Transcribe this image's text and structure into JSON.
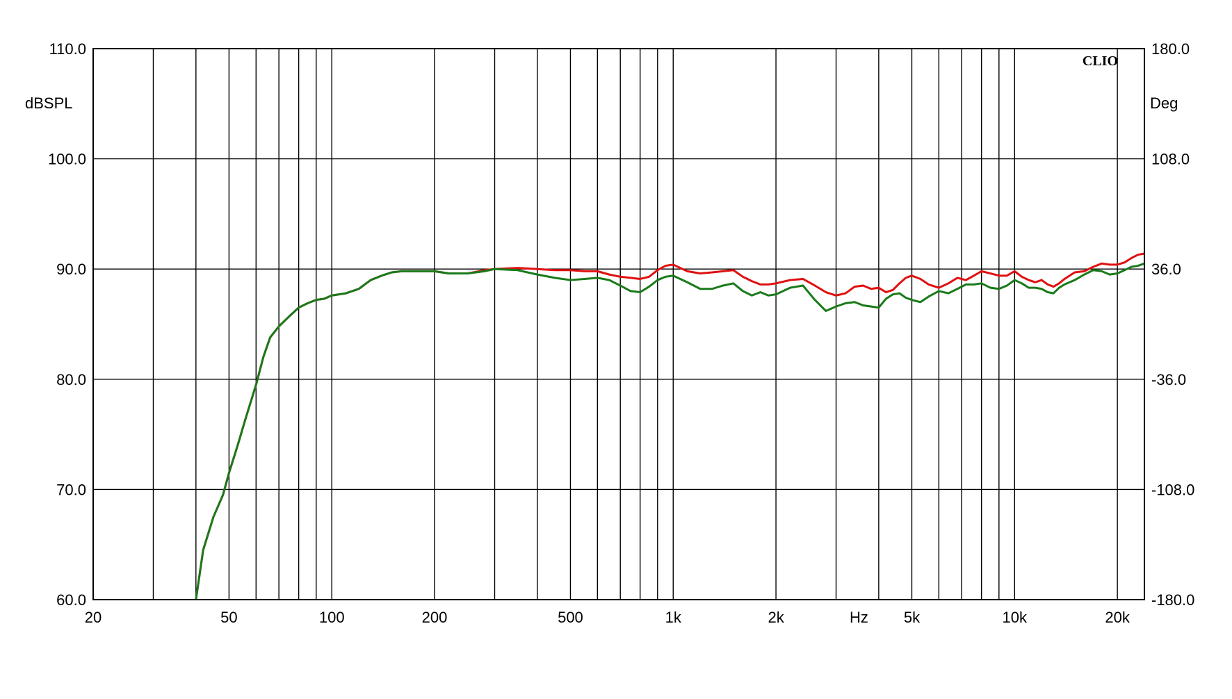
{
  "chart_data": {
    "type": "line",
    "brand": "CLIO",
    "xlabel": "Hz",
    "ylabel_left": "dBSPL",
    "ylabel_right": "Deg",
    "x_scale": "log",
    "xlim": [
      20,
      24000
    ],
    "ylim_left": [
      60,
      110
    ],
    "ylim_right": [
      -180,
      180
    ],
    "grid": true,
    "x_ticks": [
      {
        "value": 20,
        "label": "20"
      },
      {
        "value": 50,
        "label": "50"
      },
      {
        "value": 100,
        "label": "100"
      },
      {
        "value": 200,
        "label": "200"
      },
      {
        "value": 500,
        "label": "500"
      },
      {
        "value": 1000,
        "label": "1k"
      },
      {
        "value": 2000,
        "label": "2k"
      },
      {
        "value": 3500,
        "label": "Hz"
      },
      {
        "value": 5000,
        "label": "5k"
      },
      {
        "value": 10000,
        "label": "10k"
      },
      {
        "value": 20000,
        "label": "20k"
      }
    ],
    "x_gridlines": [
      20,
      30,
      40,
      50,
      60,
      70,
      80,
      90,
      100,
      200,
      300,
      400,
      500,
      600,
      700,
      800,
      900,
      1000,
      2000,
      3000,
      4000,
      5000,
      6000,
      7000,
      8000,
      9000,
      10000,
      20000
    ],
    "y_ticks_left": [
      {
        "value": 110,
        "label": "110.0"
      },
      {
        "value": 100,
        "label": "100.0"
      },
      {
        "value": 90,
        "label": "90.0"
      },
      {
        "value": 80,
        "label": "80.0"
      },
      {
        "value": 70,
        "label": "70.0"
      },
      {
        "value": 60,
        "label": "60.0"
      }
    ],
    "y_ticks_right": [
      {
        "value": 180,
        "label": "180.0"
      },
      {
        "value": 108,
        "label": "108.0"
      },
      {
        "value": 36,
        "label": "36.0"
      },
      {
        "value": -36,
        "label": "-36.0"
      },
      {
        "value": -108,
        "label": "-108.0"
      },
      {
        "value": -180,
        "label": "-180.0"
      }
    ],
    "series": [
      {
        "color": "#e01010",
        "x": [
          40,
          42,
          45,
          48,
          50,
          53,
          56,
          60,
          63,
          66,
          70,
          75,
          80,
          85,
          90,
          95,
          100,
          110,
          120,
          130,
          140,
          150,
          160,
          180,
          200,
          220,
          250,
          280,
          300,
          350,
          400,
          450,
          500,
          550,
          600,
          650,
          700,
          750,
          800,
          850,
          900,
          950,
          1000,
          1100,
          1200,
          1300,
          1400,
          1500,
          1600,
          1700,
          1800,
          1900,
          2000,
          2200,
          2400,
          2600,
          2800,
          3000,
          3200,
          3400,
          3600,
          3800,
          4000,
          4200,
          4400,
          4600,
          4800,
          5000,
          5300,
          5600,
          6000,
          6400,
          6800,
          7200,
          7600,
          8000,
          8500,
          9000,
          9500,
          10000,
          10500,
          11000,
          11500,
          12000,
          12500,
          13000,
          13500,
          14000,
          15000,
          16000,
          17000,
          18000,
          19000,
          20000,
          21000,
          22000,
          23000,
          24000
        ],
        "y": [
          60.0,
          64.5,
          67.5,
          69.5,
          71.5,
          74.0,
          76.5,
          79.5,
          82.0,
          83.8,
          84.8,
          85.7,
          86.5,
          86.9,
          87.2,
          87.3,
          87.6,
          87.8,
          88.2,
          89.0,
          89.4,
          89.7,
          89.8,
          89.8,
          89.8,
          89.6,
          89.6,
          89.9,
          90.0,
          90.1,
          90.0,
          89.9,
          89.9,
          89.8,
          89.8,
          89.5,
          89.3,
          89.2,
          89.1,
          89.3,
          89.9,
          90.3,
          90.4,
          89.8,
          89.6,
          89.7,
          89.8,
          89.9,
          89.3,
          88.9,
          88.6,
          88.6,
          88.7,
          89.0,
          89.1,
          88.5,
          87.9,
          87.6,
          87.8,
          88.4,
          88.5,
          88.2,
          88.3,
          87.9,
          88.1,
          88.7,
          89.2,
          89.4,
          89.1,
          88.6,
          88.3,
          88.7,
          89.2,
          89.0,
          89.4,
          89.8,
          89.6,
          89.4,
          89.4,
          89.8,
          89.3,
          89.0,
          88.8,
          89.0,
          88.6,
          88.4,
          88.7,
          89.1,
          89.7,
          89.8,
          90.2,
          90.5,
          90.4,
          90.4,
          90.6,
          91.0,
          91.3,
          91.4
        ]
      },
      {
        "color": "#1a7a1a",
        "x": [
          40,
          42,
          45,
          48,
          50,
          53,
          56,
          60,
          63,
          66,
          70,
          75,
          80,
          85,
          90,
          95,
          100,
          110,
          120,
          130,
          140,
          150,
          160,
          180,
          200,
          220,
          250,
          280,
          300,
          350,
          400,
          450,
          500,
          550,
          600,
          650,
          700,
          750,
          800,
          850,
          900,
          950,
          1000,
          1100,
          1200,
          1300,
          1400,
          1500,
          1600,
          1700,
          1800,
          1900,
          2000,
          2200,
          2400,
          2600,
          2800,
          3000,
          3200,
          3400,
          3600,
          3800,
          4000,
          4200,
          4400,
          4600,
          4800,
          5000,
          5300,
          5600,
          6000,
          6400,
          6800,
          7200,
          7600,
          8000,
          8500,
          9000,
          9500,
          10000,
          10500,
          11000,
          11500,
          12000,
          12500,
          13000,
          13500,
          14000,
          15000,
          16000,
          17000,
          18000,
          19000,
          20000,
          21000,
          22000,
          23000,
          24000
        ],
        "y": [
          60.0,
          64.5,
          67.5,
          69.5,
          71.5,
          74.0,
          76.5,
          79.5,
          82.0,
          83.8,
          84.8,
          85.7,
          86.5,
          86.9,
          87.2,
          87.3,
          87.6,
          87.8,
          88.2,
          89.0,
          89.4,
          89.7,
          89.8,
          89.8,
          89.8,
          89.6,
          89.6,
          89.8,
          90.0,
          89.9,
          89.5,
          89.2,
          89.0,
          89.1,
          89.2,
          89.0,
          88.5,
          88.0,
          87.9,
          88.4,
          89.0,
          89.3,
          89.4,
          88.8,
          88.2,
          88.2,
          88.5,
          88.7,
          88.0,
          87.6,
          87.9,
          87.6,
          87.7,
          88.3,
          88.5,
          87.2,
          86.2,
          86.6,
          86.9,
          87.0,
          86.7,
          86.6,
          86.5,
          87.3,
          87.7,
          87.8,
          87.4,
          87.2,
          87.0,
          87.5,
          88.0,
          87.8,
          88.2,
          88.6,
          88.6,
          88.7,
          88.3,
          88.2,
          88.5,
          89.0,
          88.7,
          88.3,
          88.3,
          88.2,
          87.9,
          87.8,
          88.3,
          88.6,
          89.0,
          89.5,
          89.9,
          89.8,
          89.5,
          89.6,
          89.9,
          90.2,
          90.3,
          90.5
        ]
      }
    ]
  }
}
